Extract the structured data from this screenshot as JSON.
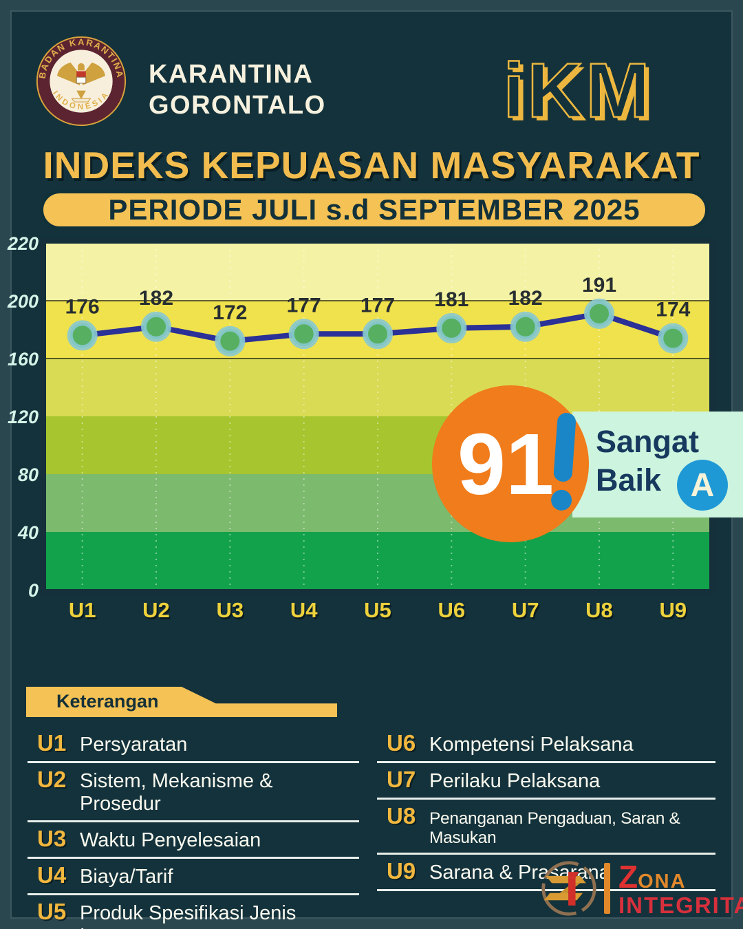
{
  "header": {
    "agency_line1": "KARANTINA",
    "agency_line2": "GORONTALO",
    "emblem_top": "BADAN KARANTINA",
    "emblem_bottom": "INDONESIA",
    "ikm_logo": "iKM"
  },
  "title": "INDEKS KEPUASAN MASYARAKAT",
  "period_banner": "PERIODE JULI s.d SEPTEMBER 2025",
  "chart_data": {
    "type": "line",
    "title": "",
    "categories": [
      "U1",
      "U2",
      "U3",
      "U4",
      "U5",
      "U6",
      "U7",
      "U8",
      "U9"
    ],
    "values": [
      176,
      182,
      172,
      177,
      177,
      181,
      182,
      191,
      174
    ],
    "y_ticks": [
      220,
      200,
      160,
      120,
      80,
      40,
      0
    ],
    "ylim": [
      0,
      220
    ],
    "band_boundaries": [
      0,
      40,
      80,
      120,
      160,
      200,
      220
    ],
    "band_colors": [
      "#13a24c",
      "#7cba6d",
      "#a6c52f",
      "#d8db53",
      "#f0e24c",
      "#f4f2a4"
    ],
    "emphasis_lines": [
      160,
      200
    ],
    "grid": true,
    "legend_position": "none",
    "line_color": "#2b3196",
    "marker_fill": "#57b061",
    "marker_ring": "#88c9d2"
  },
  "score_callout": {
    "score": "91",
    "rating": "Sangat Baik",
    "grade": "A"
  },
  "legend": {
    "heading": "Keterangan",
    "items": [
      {
        "code": "U1",
        "label": "Persyaratan"
      },
      {
        "code": "U2",
        "label": "Sistem, Mekanisme & Prosedur"
      },
      {
        "code": "U3",
        "label": "Waktu Penyelesaian"
      },
      {
        "code": "U4",
        "label": "Biaya/Tarif"
      },
      {
        "code": "U5",
        "label": "Produk Spesifikasi Jenis Layanan"
      },
      {
        "code": "U6",
        "label": "Kompetensi Pelaksana"
      },
      {
        "code": "U7",
        "label": "Perilaku Pelaksana"
      },
      {
        "code": "U8",
        "label": "Penanganan Pengaduan, Saran & Masukan"
      },
      {
        "code": "U9",
        "label": "Sarana & Prasarana"
      }
    ]
  },
  "footer": {
    "brand_z": "Z",
    "brand_rest": "ONA",
    "brand_line2": "INTEGRITAS"
  }
}
